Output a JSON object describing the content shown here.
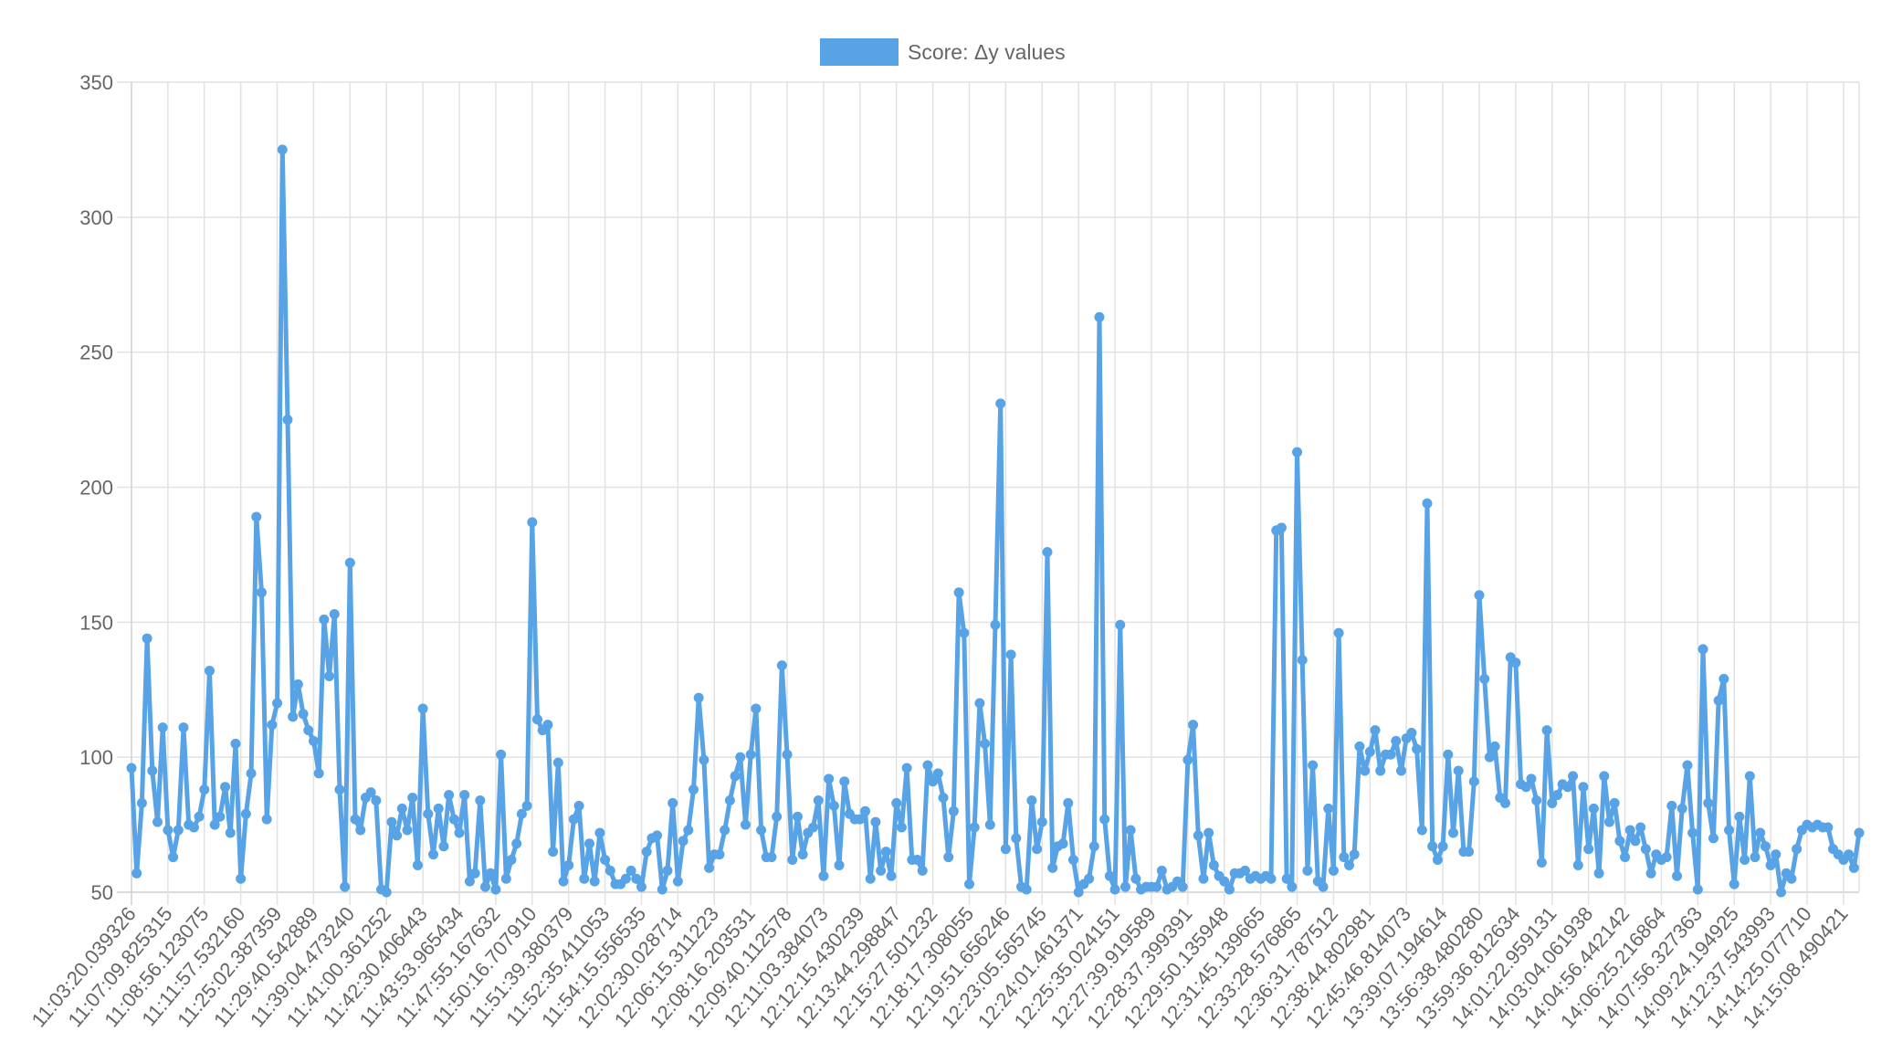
{
  "chart_data": {
    "type": "line",
    "title": "",
    "legend": {
      "position": "top-center",
      "entries": [
        "Score: Δy values"
      ]
    },
    "series": [
      {
        "name": "Score: Δy values",
        "color": "#57a3e5",
        "values": [
          96,
          57,
          83,
          144,
          95,
          76,
          111,
          73,
          63,
          73,
          111,
          75,
          74,
          78,
          88,
          132,
          75,
          78,
          89,
          72,
          105,
          55,
          79,
          94,
          189,
          161,
          77,
          112,
          120,
          325,
          225,
          115,
          127,
          116,
          110,
          106,
          94,
          151,
          130,
          153,
          88,
          52,
          172,
          77,
          73,
          85,
          87,
          84,
          51,
          50,
          76,
          71,
          81,
          73,
          85,
          60,
          118,
          79,
          64,
          81,
          67,
          86,
          77,
          72,
          86,
          54,
          57,
          84,
          52,
          57,
          51,
          101,
          55,
          62,
          68,
          79,
          82,
          187,
          114,
          110,
          112,
          65,
          98,
          54,
          60,
          77,
          82,
          55,
          68,
          54,
          72,
          62,
          58,
          53,
          53,
          55,
          58,
          55,
          52,
          65,
          70,
          71,
          51,
          58,
          83,
          54,
          69,
          73,
          88,
          122,
          99,
          59,
          64,
          64,
          73,
          84,
          93,
          100,
          75,
          101,
          118,
          73,
          63,
          63,
          78,
          134,
          101,
          62,
          78,
          64,
          72,
          74,
          84,
          56,
          92,
          82,
          60,
          91,
          79,
          77,
          77,
          80,
          55,
          76,
          58,
          65,
          56,
          83,
          74,
          96,
          62,
          62,
          58,
          97,
          91,
          94,
          85,
          63,
          80,
          161,
          146,
          53,
          74,
          120,
          105,
          75,
          149,
          231,
          66,
          138,
          70,
          52,
          51,
          84,
          66,
          76,
          176,
          59,
          67,
          68,
          83,
          62,
          50,
          53,
          55,
          67,
          263,
          77,
          56,
          51,
          149,
          52,
          73,
          55,
          51,
          52,
          52,
          52,
          58,
          51,
          52,
          54,
          52,
          99,
          112,
          71,
          55,
          72,
          60,
          56,
          54,
          51,
          57,
          57,
          58,
          55,
          56,
          55,
          56,
          55,
          184,
          185,
          55,
          52,
          213,
          136,
          58,
          97,
          54,
          52,
          81,
          58,
          146,
          63,
          60,
          64,
          104,
          95,
          102,
          110,
          95,
          101,
          101,
          106,
          95,
          107,
          109,
          103,
          73,
          194,
          67,
          62,
          67,
          101,
          72,
          95,
          65,
          65,
          91,
          160,
          129,
          100,
          104,
          85,
          83,
          137,
          135,
          90,
          89,
          92,
          84,
          61,
          110,
          83,
          86,
          90,
          89,
          93,
          60,
          89,
          66,
          81,
          57,
          93,
          76,
          83,
          69,
          63,
          73,
          69,
          74,
          66,
          57,
          64,
          62,
          63,
          82,
          56,
          81,
          97,
          72,
          51,
          140,
          83,
          70,
          121,
          129,
          73,
          53,
          78,
          62,
          93,
          63,
          72,
          67,
          60,
          64,
          50,
          57,
          55,
          66,
          73,
          75,
          74,
          75,
          74,
          74,
          66,
          64,
          62,
          64,
          59,
          72
        ]
      }
    ],
    "x_tick_every": 7,
    "x_tick_labels": [
      "11:03:20.039326",
      "11:07:09.825315",
      "11:08:56.123075",
      "11:11:57.532160",
      "11:25:02.387359",
      "11:29:40.542889",
      "11:39:04.473240",
      "11:41:00.361252",
      "11:42:30.406443",
      "11:43:53.965434",
      "11:47:55.167632",
      "11:50:16.707910",
      "11:51:39.380379",
      "11:52:35.411053",
      "11:54:15.556535",
      "12:02:30.028714",
      "12:06:15.311223",
      "12:08:16.203531",
      "12:09:40.112578",
      "12:11:03.384073",
      "12:12:15.430239",
      "12:13:44.298847",
      "12:15:27.501232",
      "12:18:17.308055",
      "12:19:51.656246",
      "12:23:05.565745",
      "12:24:01.461371",
      "12:25:35.024151",
      "12:27:39.919589",
      "12:28:37.399391",
      "12:29:50.135948",
      "12:31:45.139665",
      "12:33:28.576865",
      "12:36:31.787512",
      "12:38:44.802981",
      "12:45:46.814073",
      "13:39:07.194614",
      "13:56:38.480280",
      "13:59:36.812634",
      "14:01:22.959131",
      "14:03:04.061938",
      "14:04:56.442142",
      "14:06:25.216864",
      "14:07:56.327363",
      "14:09:24.194925",
      "14:12:37.543993",
      "14:14:25.077710",
      "14:15:08.490421"
    ],
    "y_ticks": [
      "350",
      "300",
      "250",
      "200",
      "150",
      "100",
      "50"
    ],
    "ylim": [
      50,
      350
    ],
    "xlabel": "",
    "ylabel": "",
    "grid": true
  }
}
